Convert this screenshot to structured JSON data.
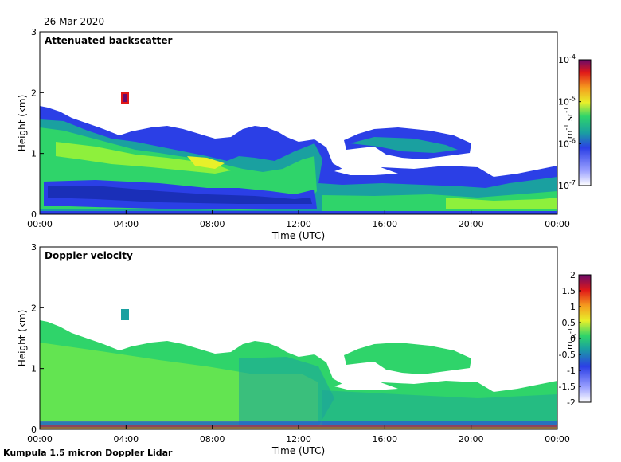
{
  "date": "26 Mar 2020",
  "footer": "Kumpula 1.5 micron Doppler Lidar",
  "colors": {
    "ramp": [
      "#ffffff",
      "#c8c8ff",
      "#2b3fe6",
      "#1aa0a0",
      "#2fd46a",
      "#8ef03c",
      "#e8f02a",
      "#f59a1e",
      "#e01818",
      "#7a0a7a"
    ]
  },
  "chart_data": [
    {
      "type": "heatmap",
      "title": "Attenuated backscatter",
      "xlabel": "Time (UTC)",
      "ylabel": "Height (km)",
      "xticks": [
        "00:00",
        "04:00",
        "08:00",
        "12:00",
        "16:00",
        "20:00",
        "00:00"
      ],
      "yticks": [
        "0",
        "1",
        "2",
        "3"
      ],
      "ylim": [
        0,
        3
      ],
      "xlim_hours": [
        0,
        24
      ],
      "colorbar": {
        "label": "m^-1 sr^-1",
        "scale": "log",
        "ticks": [
          "10^-7",
          "10^-6",
          "10^-5",
          "10^-4"
        ],
        "range": [
          1e-07,
          0.0001
        ]
      }
    },
    {
      "type": "heatmap",
      "title": "Doppler velocity",
      "xlabel": "Time (UTC)",
      "ylabel": "Height (km)",
      "xticks": [
        "00:00",
        "04:00",
        "08:00",
        "12:00",
        "16:00",
        "20:00",
        "00:00"
      ],
      "yticks": [
        "0",
        "1",
        "2",
        "3"
      ],
      "ylim": [
        0,
        3
      ],
      "xlim_hours": [
        0,
        24
      ],
      "colorbar": {
        "label": "m s^-1",
        "scale": "linear",
        "ticks": [
          "2",
          "1.5",
          "1",
          "0.5",
          "0",
          "-0.5",
          "-1",
          "-1.5",
          "-2"
        ],
        "range": [
          -2,
          2
        ]
      }
    }
  ]
}
